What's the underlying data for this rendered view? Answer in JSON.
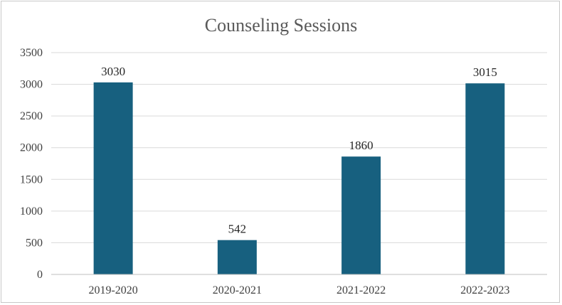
{
  "chart_data": {
    "type": "bar",
    "title": "Counseling Sessions",
    "xlabel": "",
    "ylabel": "",
    "categories": [
      "2019-2020",
      "2020-2021",
      "2021-2022",
      "2022-2023"
    ],
    "values": [
      3030,
      542,
      1860,
      3015
    ],
    "data_labels": [
      "3030",
      "542",
      "1860",
      "3015"
    ],
    "ylim": [
      0,
      3500
    ],
    "yticks": [
      0,
      500,
      1000,
      1500,
      2000,
      2500,
      3000,
      3500
    ],
    "ytick_labels": [
      "0",
      "500",
      "1000",
      "1500",
      "2000",
      "2500",
      "3000",
      "3500"
    ],
    "grid": true,
    "legend": "none",
    "bar_color": "#17607f"
  }
}
